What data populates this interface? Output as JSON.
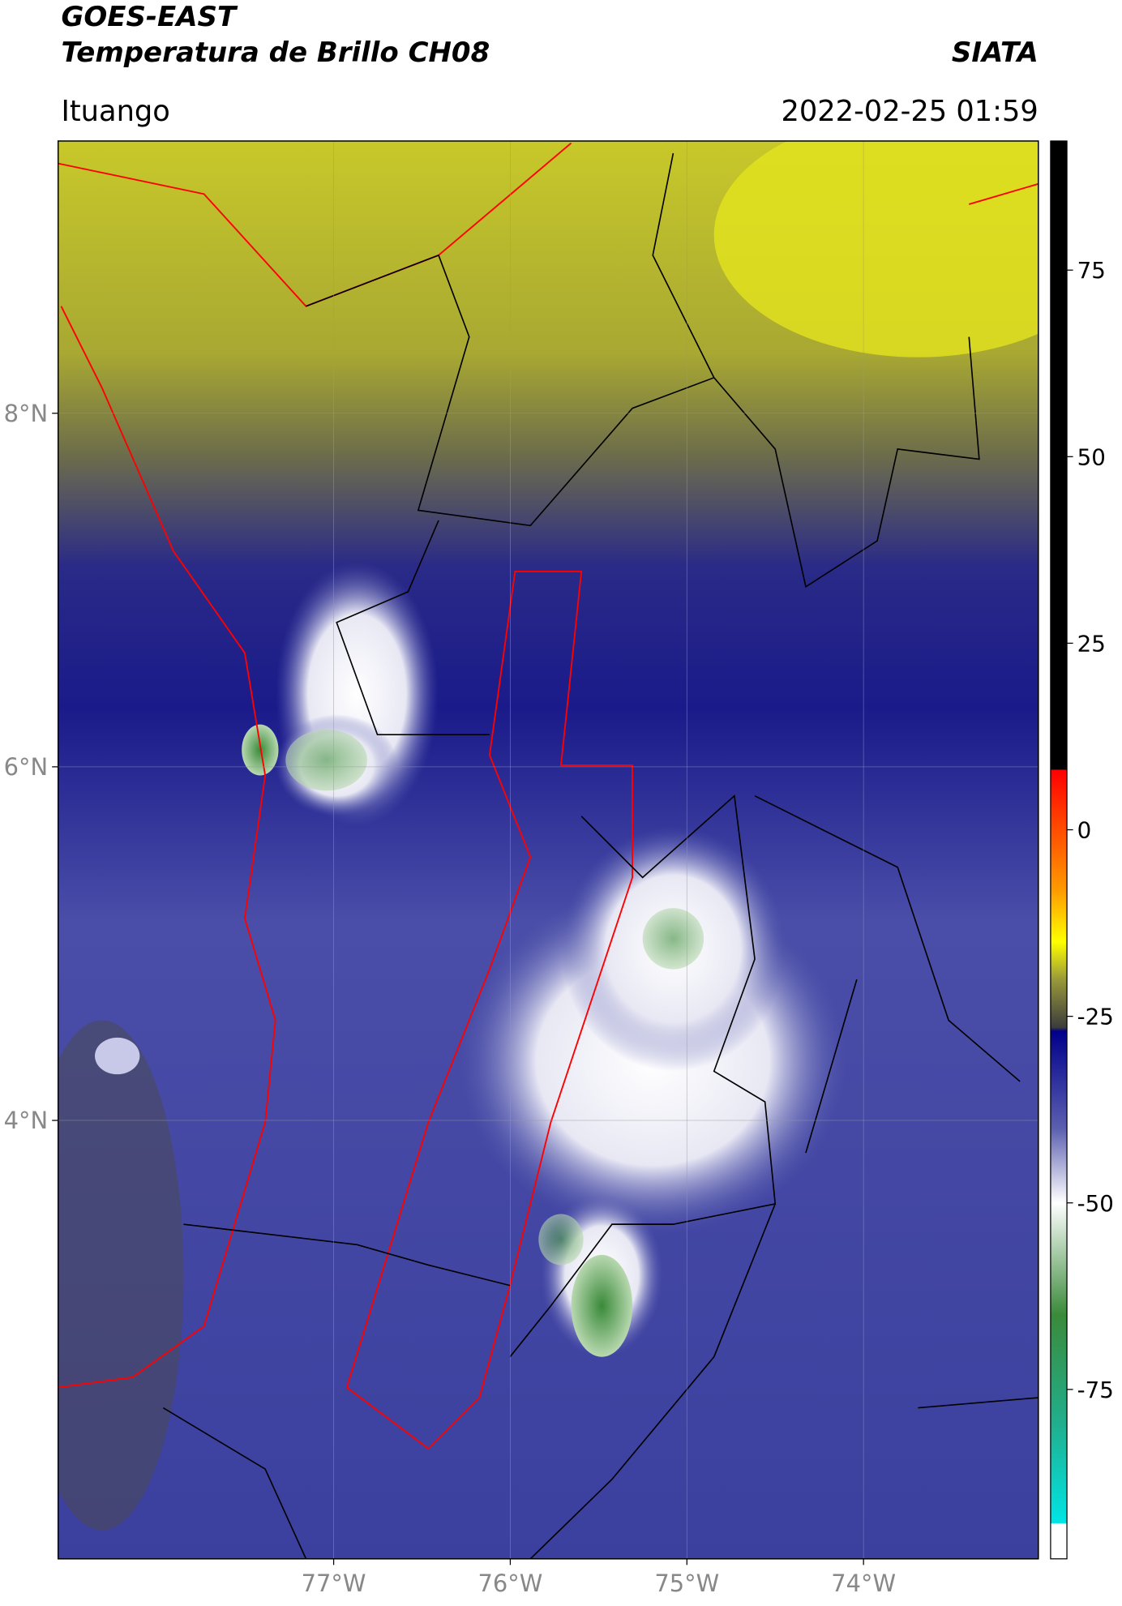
{
  "header": {
    "title_line1": "GOES-EAST",
    "title_line2": "Temperatura de Brillo CH08",
    "agency": "SIATA",
    "location": "Ituango",
    "datetime": "2022-02-25 01:59"
  },
  "map": {
    "lonlim": [
      -78.56,
      -73.01
    ],
    "latlim": [
      1.52,
      9.54
    ],
    "lon_ticks": [
      {
        "value": -77,
        "label": "77°W"
      },
      {
        "value": -76,
        "label": "76°W"
      },
      {
        "value": -75,
        "label": "75°W"
      },
      {
        "value": -74,
        "label": "74°W"
      }
    ],
    "lat_ticks": [
      {
        "value": 8,
        "label": "8°N"
      },
      {
        "value": 6,
        "label": "6°N"
      },
      {
        "value": 4,
        "label": "4°N"
      }
    ]
  },
  "colorbar": {
    "lim": [
      -97.7,
      92.3
    ],
    "ticks": [
      -75,
      -50,
      -25,
      0,
      25,
      50,
      75
    ],
    "stops": [
      {
        "value": 92.3,
        "color": "#000000"
      },
      {
        "value": 8.1,
        "color": "#000000"
      },
      {
        "value": 8,
        "color": "#ff0000"
      },
      {
        "value": -8,
        "color": "#ff9900"
      },
      {
        "value": -15,
        "color": "#ffff00"
      },
      {
        "value": -20,
        "color": "#9a9a3a"
      },
      {
        "value": -26.5,
        "color": "#3c3c3c"
      },
      {
        "value": -27,
        "color": "#00008b"
      },
      {
        "value": -40,
        "color": "#5b5fb0"
      },
      {
        "value": -50,
        "color": "#ffffff"
      },
      {
        "value": -65,
        "color": "#3a8a3a"
      },
      {
        "value": -80,
        "color": "#20b090"
      },
      {
        "value": -92.9,
        "color": "#00e5e5"
      },
      {
        "value": -93,
        "color": "#ffffff"
      },
      {
        "value": -97.7,
        "color": "#ffffff"
      }
    ]
  }
}
